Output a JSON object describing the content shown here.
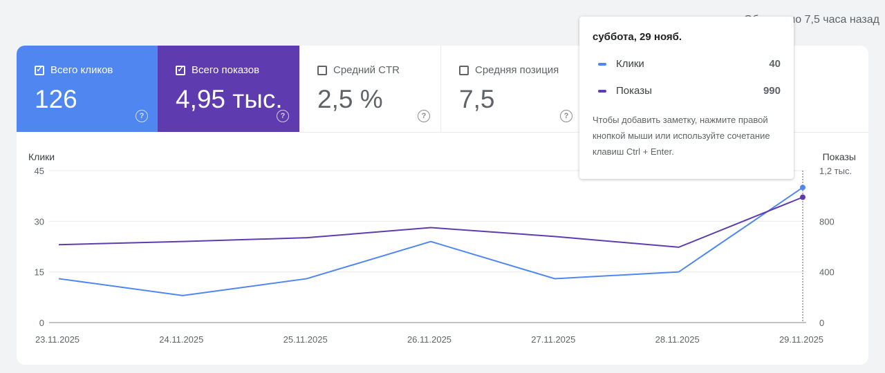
{
  "updated_text": "Обновлено 7,5 часа назад",
  "tiles": [
    {
      "label": "Всего кликов",
      "value": "126",
      "checked": true
    },
    {
      "label": "Всего показов",
      "value": "4,95 тыс.",
      "checked": true
    },
    {
      "label": "Средний CTR",
      "value": "2,5 %",
      "checked": false
    },
    {
      "label": "Средняя позиция",
      "value": "7,5",
      "checked": false
    }
  ],
  "tooltip": {
    "date": "суббота, 29 нояб.",
    "rows": [
      {
        "name": "Клики",
        "value": "40"
      },
      {
        "name": "Показы",
        "value": "990"
      }
    ],
    "note": "Чтобы добавить заметку, нажмите правой кнопкой мыши или используйте сочетание клавиш Ctrl + Enter."
  },
  "colors": {
    "clicks": "#4f86f0",
    "impressions": "#5f3bb0"
  },
  "chart_data": {
    "type": "line",
    "x": [
      "23.11.2025",
      "24.11.2025",
      "25.11.2025",
      "26.11.2025",
      "27.11.2025",
      "28.11.2025",
      "29.11.2025"
    ],
    "ylabel_left": "Клики",
    "ylabel_right": "Показы",
    "yticks_left": [
      "0",
      "15",
      "30",
      "45"
    ],
    "yticks_right": [
      "0",
      "400",
      "800",
      "1,2 тыс."
    ],
    "ylim_left": [
      0,
      45
    ],
    "ylim_right": [
      0,
      1200
    ],
    "grid": true,
    "series": [
      {
        "name": "Клики",
        "axis": "left",
        "values": [
          13,
          8,
          13,
          24,
          13,
          15,
          40
        ]
      },
      {
        "name": "Показы",
        "axis": "right",
        "values": [
          615,
          640,
          670,
          750,
          680,
          595,
          990
        ]
      }
    ]
  }
}
